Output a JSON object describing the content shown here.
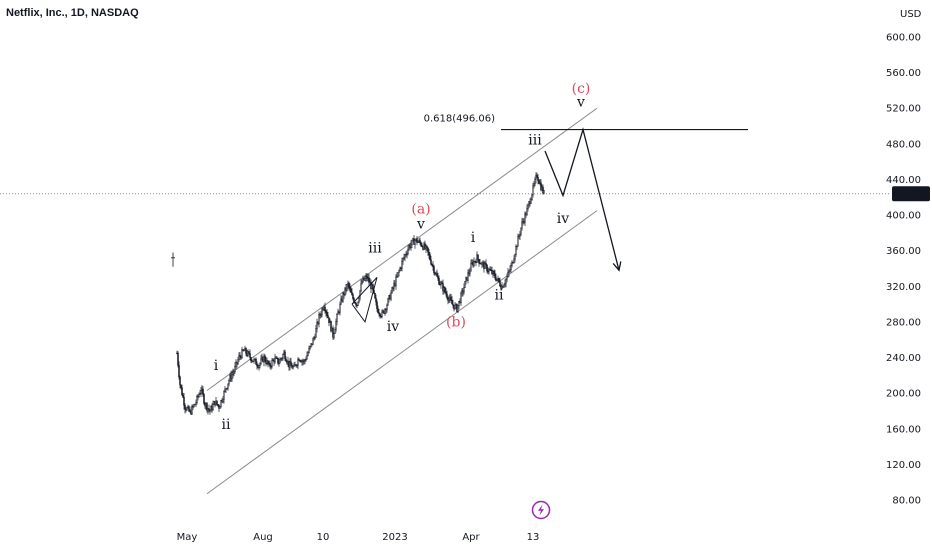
{
  "header": {
    "symbol_title": "Netflix, Inc., 1D, NASDAQ"
  },
  "price_axis": {
    "currency": "USD",
    "ticks": [
      "600.00",
      "560.00",
      "520.00",
      "480.00",
      "440.00",
      "400.00",
      "360.00",
      "320.00",
      "280.00",
      "240.00",
      "200.00",
      "160.00",
      "120.00",
      "80.00"
    ]
  },
  "time_axis": {
    "ticks": [
      "May",
      "Aug",
      "10",
      "2023",
      "Apr",
      "13"
    ]
  },
  "last_price": {
    "label": "424.02",
    "color": "#131722"
  },
  "fib_label": "0.618(496.06)",
  "colors": {
    "candles": "#131722",
    "channel": "#8a8a8a",
    "red_label": "#e04a5b",
    "badge": "#9c27b0"
  },
  "chart_data": {
    "type": "candlestick",
    "symbol": "Netflix, Inc.",
    "interval": "1D",
    "exchange": "NASDAQ",
    "currency": "USD",
    "ylim": [
      70,
      620
    ],
    "y_ticks": [
      600,
      560,
      520,
      480,
      440,
      400,
      360,
      320,
      280,
      240,
      200,
      160,
      120,
      80
    ],
    "x_ticks": [
      "May",
      "Aug",
      "10",
      "2023",
      "Apr",
      "13"
    ],
    "last_price": 424.02,
    "fib_level": {
      "label": "0.618(496.06)",
      "value": 496.06
    },
    "price_path": [
      {
        "t": 0,
        "p": 245
      },
      {
        "t": 3,
        "p": 210
      },
      {
        "t": 8,
        "p": 185
      },
      {
        "t": 13,
        "p": 178
      },
      {
        "t": 19,
        "p": 190
      },
      {
        "t": 24,
        "p": 205
      },
      {
        "t": 28,
        "p": 188
      },
      {
        "t": 33,
        "p": 180
      },
      {
        "t": 38,
        "p": 190
      },
      {
        "t": 42,
        "p": 185
      },
      {
        "t": 47,
        "p": 200
      },
      {
        "t": 52,
        "p": 215
      },
      {
        "t": 57,
        "p": 225
      },
      {
        "t": 62,
        "p": 240
      },
      {
        "t": 67,
        "p": 248
      },
      {
        "t": 72,
        "p": 242
      },
      {
        "t": 77,
        "p": 236
      },
      {
        "t": 82,
        "p": 232
      },
      {
        "t": 87,
        "p": 240
      },
      {
        "t": 92,
        "p": 230
      },
      {
        "t": 97,
        "p": 238
      },
      {
        "t": 102,
        "p": 235
      },
      {
        "t": 107,
        "p": 245
      },
      {
        "t": 112,
        "p": 232
      },
      {
        "t": 117,
        "p": 228
      },
      {
        "t": 122,
        "p": 240
      },
      {
        "t": 127,
        "p": 235
      },
      {
        "t": 132,
        "p": 248
      },
      {
        "t": 137,
        "p": 262
      },
      {
        "t": 142,
        "p": 285
      },
      {
        "t": 147,
        "p": 300
      },
      {
        "t": 152,
        "p": 282
      },
      {
        "t": 156,
        "p": 265
      },
      {
        "t": 161,
        "p": 290
      },
      {
        "t": 166,
        "p": 310
      },
      {
        "t": 171,
        "p": 322
      },
      {
        "t": 175,
        "p": 308
      },
      {
        "t": 180,
        "p": 300
      },
      {
        "t": 185,
        "p": 325
      },
      {
        "t": 190,
        "p": 330
      },
      {
        "t": 195,
        "p": 318
      },
      {
        "t": 200,
        "p": 295
      },
      {
        "t": 205,
        "p": 288
      },
      {
        "t": 210,
        "p": 300
      },
      {
        "t": 215,
        "p": 315
      },
      {
        "t": 220,
        "p": 330
      },
      {
        "t": 226,
        "p": 350
      },
      {
        "t": 232,
        "p": 365
      },
      {
        "t": 238,
        "p": 372
      },
      {
        "t": 244,
        "p": 368
      },
      {
        "t": 250,
        "p": 360
      },
      {
        "t": 255,
        "p": 345
      },
      {
        "t": 260,
        "p": 330
      },
      {
        "t": 265,
        "p": 320
      },
      {
        "t": 270,
        "p": 310
      },
      {
        "t": 275,
        "p": 300
      },
      {
        "t": 280,
        "p": 295
      },
      {
        "t": 285,
        "p": 312
      },
      {
        "t": 290,
        "p": 330
      },
      {
        "t": 295,
        "p": 345
      },
      {
        "t": 300,
        "p": 352
      },
      {
        "t": 305,
        "p": 345
      },
      {
        "t": 310,
        "p": 340
      },
      {
        "t": 315,
        "p": 335
      },
      {
        "t": 320,
        "p": 328
      },
      {
        "t": 325,
        "p": 320
      },
      {
        "t": 330,
        "p": 330
      },
      {
        "t": 335,
        "p": 345
      },
      {
        "t": 340,
        "p": 368
      },
      {
        "t": 345,
        "p": 390
      },
      {
        "t": 350,
        "p": 405
      },
      {
        "t": 355,
        "p": 425
      },
      {
        "t": 360,
        "p": 445
      },
      {
        "t": 364,
        "p": 432
      },
      {
        "t": 367,
        "p": 424
      }
    ],
    "isolated_price": {
      "t": -4,
      "p": 352
    },
    "channel": {
      "upper": [
        {
          "t": 30,
          "p": 203
        },
        {
          "t": 420,
          "p": 520
        }
      ],
      "lower": [
        {
          "t": 30,
          "p": 87
        },
        {
          "t": 420,
          "p": 405
        }
      ]
    },
    "projection_path": [
      {
        "t": 368,
        "p": 472
      },
      {
        "t": 386,
        "p": 422
      },
      {
        "t": 406,
        "p": 496
      },
      {
        "t": 442,
        "p": 338
      }
    ],
    "labels": [
      {
        "text": "i",
        "t": 39,
        "p": 226,
        "color": "black"
      },
      {
        "text": "ii",
        "t": 49,
        "p": 160,
        "color": "black"
      },
      {
        "text": "iii",
        "t": 198,
        "p": 358,
        "color": "black"
      },
      {
        "text": "iv",
        "t": 216,
        "p": 270,
        "color": "black"
      },
      {
        "text": "v",
        "t": 244,
        "p": 385,
        "color": "black"
      },
      {
        "text": "(a)",
        "t": 244,
        "p": 402,
        "color": "red"
      },
      {
        "text": "(b)",
        "t": 279,
        "p": 275,
        "color": "red"
      },
      {
        "text": "i",
        "t": 296,
        "p": 370,
        "color": "black"
      },
      {
        "text": "ii",
        "t": 322,
        "p": 305,
        "color": "black"
      },
      {
        "text": "iii",
        "t": 358,
        "p": 479,
        "color": "black"
      },
      {
        "text": "iv",
        "t": 386,
        "p": 391,
        "color": "black"
      },
      {
        "text": "(c)",
        "t": 404,
        "p": 537,
        "color": "red"
      },
      {
        "text": "v",
        "t": 404,
        "p": 522,
        "color": "black"
      }
    ]
  }
}
